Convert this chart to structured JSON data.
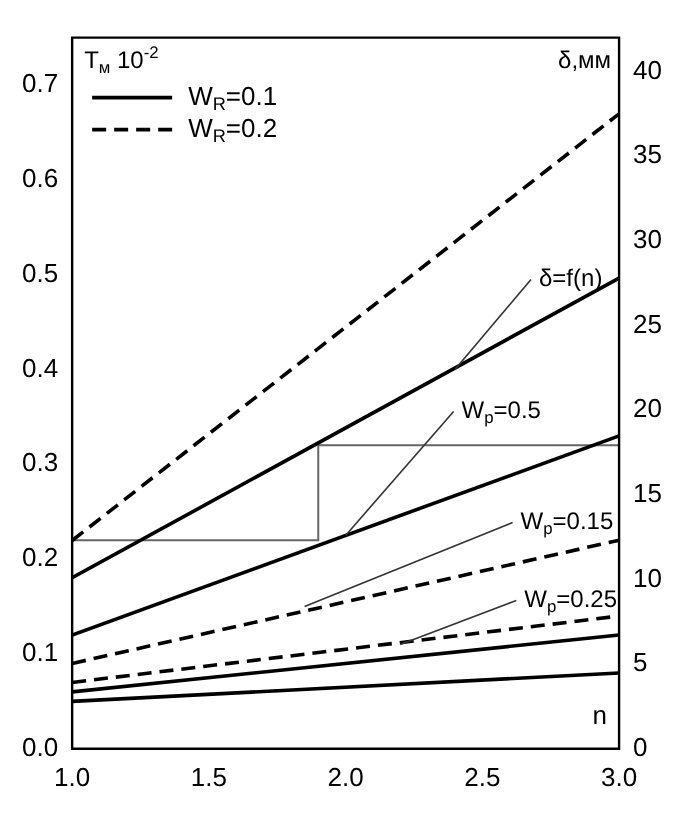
{
  "chart_data": {
    "type": "line",
    "xlabel": "n",
    "ylabel": "T$_{м}$ 10$^{-2}$",
    "y2label": "δ,мм",
    "x": [
      1.0,
      3.0
    ],
    "series": [
      {
        "name": "W$_{R}$=0.1",
        "color": "#000000",
        "line_style": "solid",
        "axis": "y2",
        "values": [
          10.1,
          27.8
        ]
      },
      {
        "name": "W$_{R}$=0.2",
        "color": "#000000",
        "line_style": "dashed",
        "axis": "y2",
        "values": [
          12.3,
          37.5
        ]
      },
      {
        "color": "#000000",
        "line_style": "solid",
        "values": [
          0.12,
          0.33
        ]
      },
      {
        "color": "#000000",
        "line_style": "dashed",
        "values": [
          0.09,
          0.22
        ]
      },
      {
        "color": "#000000",
        "line_style": "dashed",
        "values": [
          0.07,
          0.14
        ]
      },
      {
        "color": "#000000",
        "line_style": "solid",
        "values": [
          0.06,
          0.12
        ]
      },
      {
        "color": "#000000",
        "line_style": "solid",
        "values": [
          0.05,
          0.08
        ]
      },
      {
        "color": "#666666",
        "line_style": "solid",
        "x": [
          1.0,
          1.9,
          1.9,
          3.0
        ],
        "values": [
          0.22,
          0.22,
          0.32,
          0.32
        ]
      }
    ],
    "annotations": [
      {
        "text": "δ=f(n)",
        "x": 2.4,
        "y": 0.4
      },
      {
        "text": "W$_{p}$=0.5",
        "x": 2.0,
        "y": 0.225
      },
      {
        "text": "W$_{p}$=0.15",
        "x": 1.85,
        "y": 0.15
      },
      {
        "text": "W$_{p}$=0.25",
        "x": 2.2,
        "y": 0.11
      }
    ],
    "xlim": [
      1.0,
      3.0
    ],
    "xticks": [
      {
        "value": 1,
        "label": "1.0"
      },
      {
        "value": 1.5,
        "label": "1.5"
      },
      {
        "value": 2,
        "label": "2.0"
      },
      {
        "value": 2.5,
        "label": "2.5"
      },
      {
        "value": 3,
        "label": "3.0"
      }
    ],
    "ylim": [
      0,
      0.75
    ],
    "yticks": [
      {
        "value": 0,
        "label": "0.0"
      },
      {
        "value": 0.1,
        "label": "0.1"
      },
      {
        "value": 0.2,
        "label": "0.2"
      },
      {
        "value": 0.3,
        "label": "0.3"
      },
      {
        "value": 0.4,
        "label": "0.4"
      },
      {
        "value": 0.5,
        "label": "0.5"
      },
      {
        "value": 0.6,
        "label": "0.6"
      },
      {
        "value": 0.7,
        "label": "0.7"
      }
    ],
    "y2lim": [
      0,
      42
    ],
    "y2ticks": [
      0,
      5,
      10,
      15,
      20,
      25,
      30,
      35,
      40
    ],
    "grid": false,
    "legend": "top left",
    "marker": "none"
  }
}
